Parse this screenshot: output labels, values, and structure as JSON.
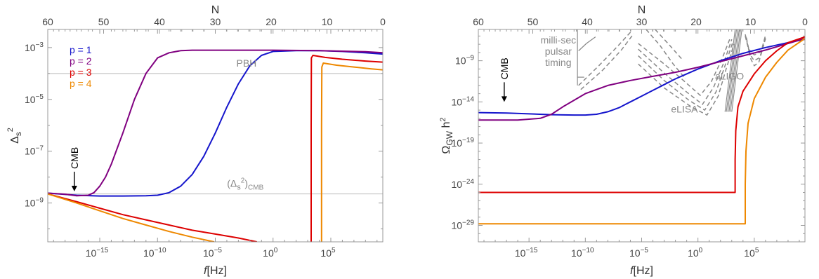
{
  "chart_data": [
    {
      "type": "line",
      "xlabel_italic": "f",
      "xlabel_rest": "[Hz]",
      "top_label": "N",
      "ylabel_base": "Δ",
      "ylabel_sub": "s",
      "ylabel_sup": "2",
      "x_scale": "log10",
      "y_scale": "log10",
      "xlim_log": [
        -19.5,
        9.5
      ],
      "ylim_log": [
        -10.5,
        -2.3
      ],
      "x_ticks": [
        {
          "v": -15,
          "label": "10",
          "sup": "−15"
        },
        {
          "v": -10,
          "label": "10",
          "sup": "−10"
        },
        {
          "v": -5,
          "label": "10",
          "sup": "−5"
        },
        {
          "v": 0,
          "label": "10",
          "sup": "0"
        },
        {
          "v": 5,
          "label": "10",
          "sup": "5"
        }
      ],
      "y_ticks": [
        {
          "v": -9,
          "label": "10",
          "sup": "−9"
        },
        {
          "v": -7,
          "label": "10",
          "sup": "−7"
        },
        {
          "v": -5,
          "label": "10",
          "sup": "−5"
        },
        {
          "v": -3,
          "label": "10",
          "sup": "−3"
        }
      ],
      "top_ticks": [
        {
          "v": 60,
          "label": "60"
        },
        {
          "v": 50,
          "label": "50"
        },
        {
          "v": 40,
          "label": "40"
        },
        {
          "v": 30,
          "label": "30"
        },
        {
          "v": 20,
          "label": "20"
        },
        {
          "v": 10,
          "label": "10"
        },
        {
          "v": 0,
          "label": "0"
        }
      ],
      "hlines": [
        {
          "y": -4,
          "label": "PBH",
          "lx": -2.3
        },
        {
          "y": -8.65,
          "label_pre": "(Δ",
          "label_sub": "s",
          "label_sup": "2",
          "label_post": ")",
          "label_sub2": "CMB",
          "lx": -2.4
        }
      ],
      "cmb_label": "CMB",
      "cmb_x": -17.2,
      "legend": [
        {
          "name": "p = 1",
          "color": "#1515cc"
        },
        {
          "name": "p = 2",
          "color": "#800080"
        },
        {
          "name": "p = 3",
          "color": "#dd0000"
        },
        {
          "name": "p = 4",
          "color": "#ee8800"
        }
      ],
      "series": [
        {
          "name": "p = 1",
          "color": "#1515cc",
          "x": [
            -19.5,
            -17,
            -15,
            -13,
            -11,
            -10,
            -9,
            -8,
            -7,
            -6,
            -5,
            -4,
            -3,
            -2,
            -1,
            0,
            2,
            4,
            6,
            8,
            9.5
          ],
          "y": [
            -8.62,
            -8.7,
            -8.73,
            -8.73,
            -8.72,
            -8.7,
            -8.6,
            -8.35,
            -7.9,
            -7.2,
            -6.3,
            -5.3,
            -4.4,
            -3.7,
            -3.3,
            -3.15,
            -3.12,
            -3.12,
            -3.15,
            -3.2,
            -3.25
          ]
        },
        {
          "name": "p = 2",
          "color": "#800080",
          "x": [
            -19.5,
            -18,
            -17,
            -16,
            -15.5,
            -15,
            -14.5,
            -14,
            -13,
            -12,
            -11,
            -10,
            -9,
            -8,
            -7,
            -5,
            -3,
            0,
            4,
            8,
            9.5
          ],
          "y": [
            -8.62,
            -8.66,
            -8.72,
            -8.7,
            -8.6,
            -8.35,
            -8.0,
            -7.5,
            -6.3,
            -5.0,
            -4.0,
            -3.4,
            -3.2,
            -3.12,
            -3.1,
            -3.1,
            -3.1,
            -3.1,
            -3.12,
            -3.16,
            -3.2
          ]
        },
        {
          "name": "p = 3",
          "color": "#dd0000",
          "x": [
            -19.5,
            -17,
            -15,
            -13,
            -11,
            -9,
            -7,
            -5,
            -3,
            -1.4
          ],
          "y": [
            -8.65,
            -8.95,
            -9.2,
            -9.45,
            -9.65,
            -9.85,
            -10.05,
            -10.2,
            -10.35,
            -10.5
          ]
        },
        {
          "name": "p = 3",
          "color": "#dd0000",
          "x": [
            3.3,
            3.3,
            3.32,
            3.45,
            4.5,
            6,
            8,
            9.5
          ],
          "y": [
            -10.5,
            -6.0,
            -3.4,
            -3.3,
            -3.38,
            -3.45,
            -3.52,
            -3.56
          ]
        },
        {
          "name": "p = 4",
          "color": "#ee8800",
          "x": [
            -19.5,
            -17,
            -15,
            -13,
            -11,
            -9,
            -7,
            -5.1
          ],
          "y": [
            -8.65,
            -9.0,
            -9.3,
            -9.6,
            -9.85,
            -10.1,
            -10.32,
            -10.5
          ]
        },
        {
          "name": "p = 4",
          "color": "#ee8800",
          "x": [
            4.2,
            4.2,
            4.22,
            4.35,
            5.5,
            7,
            8.5,
            9.5
          ],
          "y": [
            -10.5,
            -6.0,
            -3.75,
            -3.6,
            -3.68,
            -3.75,
            -3.82,
            -3.86
          ]
        }
      ]
    },
    {
      "type": "line",
      "xlabel_italic": "f",
      "xlabel_rest": "[Hz]",
      "top_label": "N",
      "ylabel_base": "Ω",
      "ylabel_sub": "GW",
      "ylabel_h": "h",
      "ylabel_sup": "2",
      "x_scale": "log10",
      "y_scale": "log10",
      "xlim_log": [
        -19.5,
        9.5
      ],
      "ylim_log": [
        -31,
        -5.2
      ],
      "x_ticks": [
        {
          "v": -15,
          "label": "10",
          "sup": "−15"
        },
        {
          "v": -10,
          "label": "10",
          "sup": "−10"
        },
        {
          "v": -5,
          "label": "10",
          "sup": "−5"
        },
        {
          "v": 0,
          "label": "10",
          "sup": "0"
        },
        {
          "v": 5,
          "label": "10",
          "sup": "5"
        }
      ],
      "y_ticks": [
        {
          "v": -29,
          "label": "10",
          "sup": "−29"
        },
        {
          "v": -24,
          "label": "10",
          "sup": "−24"
        },
        {
          "v": -19,
          "label": "10",
          "sup": "−19"
        },
        {
          "v": -14,
          "label": "10",
          "sup": "−14"
        },
        {
          "v": -9,
          "label": "10",
          "sup": "−9"
        }
      ],
      "top_ticks": [
        {
          "v": 60,
          "label": "60"
        },
        {
          "v": 50,
          "label": "50"
        },
        {
          "v": 40,
          "label": "40"
        },
        {
          "v": 30,
          "label": "30"
        },
        {
          "v": 20,
          "label": "20"
        },
        {
          "v": 10,
          "label": "10"
        },
        {
          "v": 0,
          "label": "0"
        }
      ],
      "cmb_label": "CMB",
      "cmb_x": -17.2,
      "detector_labels": [
        {
          "lines": [
            "milli-sec",
            "pulsar",
            "timing"
          ],
          "x": -12.4,
          "y": -6.9
        },
        {
          "lines": [
            "eLISA"
          ],
          "x": -1.2,
          "y": -15.3
        },
        {
          "lines": [
            "aLIGO"
          ],
          "x": 2.8,
          "y": -11.3
        }
      ],
      "series": [
        {
          "name": "p = 1",
          "color": "#1515cc",
          "x": [
            -19.5,
            -17,
            -15,
            -13,
            -11,
            -10,
            -9,
            -8,
            -7,
            -6,
            -5,
            -4,
            -3,
            -2,
            -1,
            0,
            2,
            4,
            6,
            8,
            9.5
          ],
          "y": [
            -15.3,
            -15.35,
            -15.45,
            -15.55,
            -15.6,
            -15.6,
            -15.5,
            -15.2,
            -14.7,
            -14.0,
            -13.3,
            -12.6,
            -11.9,
            -11.2,
            -10.6,
            -10.0,
            -9.0,
            -8.1,
            -7.4,
            -6.8,
            -6.4
          ]
        },
        {
          "name": "p = 2",
          "color": "#800080",
          "x": [
            -19.5,
            -16,
            -14,
            -13,
            -12,
            -11,
            -10,
            -9,
            -8,
            -6,
            -4,
            -2,
            0,
            2,
            4,
            6,
            8,
            9.5
          ],
          "y": [
            -16.2,
            -16.2,
            -16.0,
            -15.5,
            -14.6,
            -13.8,
            -13.0,
            -12.5,
            -12.0,
            -11.4,
            -10.9,
            -10.4,
            -9.8,
            -9.1,
            -8.4,
            -7.7,
            -6.9,
            -6.3
          ]
        },
        {
          "name": "p = 3",
          "color": "#dd0000",
          "x": [
            -19.5,
            3.3,
            3.3,
            3.36,
            3.55,
            4,
            5,
            6,
            7,
            8,
            9.5
          ],
          "y": [
            -25.0,
            -25.0,
            -21.0,
            -17.5,
            -14.6,
            -12.7,
            -10.6,
            -9.0,
            -7.8,
            -6.8,
            -6.1
          ]
        },
        {
          "name": "p = 4",
          "color": "#ee8800",
          "x": [
            -19.5,
            4.2,
            4.2,
            4.26,
            4.45,
            5,
            6,
            7,
            8,
            9.5
          ],
          "y": [
            -28.8,
            -28.8,
            -24.0,
            -20.0,
            -16.6,
            -13.6,
            -11.0,
            -9.2,
            -7.7,
            -6.3
          ]
        }
      ]
    }
  ]
}
